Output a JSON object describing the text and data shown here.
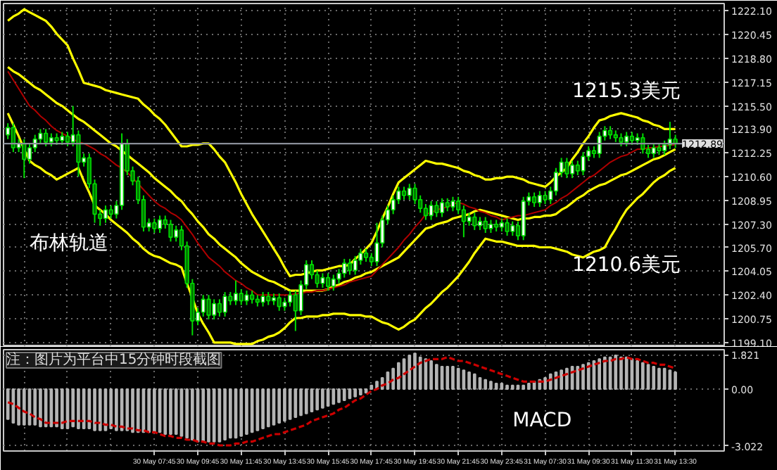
{
  "chart_data": [
    {
      "type": "candlestick",
      "categories": [
        null,
        null,
        null,
        null,
        null,
        null,
        null,
        null,
        null,
        null,
        null,
        null,
        null,
        null,
        null,
        null,
        null,
        null,
        null,
        null,
        null,
        null,
        null,
        null,
        null,
        null,
        null,
        null,
        null,
        null,
        null,
        null,
        null,
        null,
        null,
        null,
        null,
        null,
        null,
        null,
        null,
        null,
        null,
        null,
        null,
        null,
        null,
        null,
        null,
        null,
        null,
        null,
        null,
        null,
        null,
        null,
        null,
        null,
        null,
        null,
        null,
        null,
        null,
        null,
        null,
        null,
        null,
        null,
        null,
        null,
        null,
        null,
        null,
        null,
        null,
        null,
        null,
        null,
        null,
        null,
        null,
        null,
        null,
        null,
        null,
        null,
        null,
        null,
        null,
        null,
        null,
        null,
        null,
        null,
        null,
        null,
        null,
        null,
        null,
        null,
        null,
        null,
        null,
        null,
        null,
        null,
        null,
        null,
        null,
        null,
        null,
        null,
        null,
        null,
        null,
        null,
        null,
        null,
        null,
        null,
        null,
        null,
        null,
        null
      ],
      "ohlc": [
        [
          1213.5,
          1214.3,
          1213.2,
          1214.0
        ],
        [
          1214.0,
          1214.3,
          1212.3,
          1212.6
        ],
        [
          1212.6,
          1213.2,
          1212.3,
          1212.9
        ],
        [
          1212.9,
          1213.2,
          1210.5,
          1211.8
        ],
        [
          1211.8,
          1212.9,
          1211.5,
          1212.6
        ],
        [
          1212.6,
          1213.5,
          1212.3,
          1213.2
        ],
        [
          1213.2,
          1213.9,
          1212.9,
          1213.6
        ],
        [
          1213.6,
          1213.9,
          1212.7,
          1213.0
        ],
        [
          1213.0,
          1213.6,
          1212.7,
          1213.3
        ],
        [
          1213.3,
          1213.6,
          1212.8,
          1213.1
        ],
        [
          1213.1,
          1213.7,
          1212.8,
          1213.4
        ],
        [
          1213.4,
          1213.7,
          1212.7,
          1213.0
        ],
        [
          1213.0,
          1215.5,
          1212.7,
          1213.5
        ],
        [
          1213.5,
          1213.8,
          1210.6,
          1211.6
        ],
        [
          1211.6,
          1212.2,
          1211.3,
          1211.9
        ],
        [
          1211.9,
          1212.2,
          1209.8,
          1210.1
        ],
        [
          1210.1,
          1210.4,
          1207.4,
          1208.0
        ],
        [
          1208.0,
          1208.3,
          1207.2,
          1207.7
        ],
        [
          1207.7,
          1208.6,
          1207.4,
          1208.3
        ],
        [
          1208.3,
          1208.6,
          1207.7,
          1208.0
        ],
        [
          1208.0,
          1208.9,
          1207.7,
          1208.6
        ],
        [
          1208.6,
          1213.6,
          1208.3,
          1212.9
        ],
        [
          1212.9,
          1213.2,
          1210.7,
          1211.0
        ],
        [
          1211.0,
          1211.3,
          1210.0,
          1210.3
        ],
        [
          1210.3,
          1210.6,
          1208.7,
          1209.0
        ],
        [
          1209.0,
          1209.3,
          1206.8,
          1207.1
        ],
        [
          1207.1,
          1207.7,
          1206.8,
          1207.4
        ],
        [
          1207.4,
          1207.7,
          1206.7,
          1207.0
        ],
        [
          1207.0,
          1207.9,
          1206.7,
          1207.6
        ],
        [
          1207.6,
          1207.9,
          1207.0,
          1207.3
        ],
        [
          1207.3,
          1207.6,
          1206.1,
          1206.4
        ],
        [
          1206.4,
          1207.2,
          1206.1,
          1206.9
        ],
        [
          1206.9,
          1207.2,
          1205.5,
          1205.8
        ],
        [
          1205.8,
          1206.1,
          1202.9,
          1203.2
        ],
        [
          1203.2,
          1203.5,
          1199.6,
          1200.6
        ],
        [
          1200.6,
          1201.5,
          1200.3,
          1201.2
        ],
        [
          1201.2,
          1202.4,
          1200.9,
          1202.1
        ],
        [
          1202.1,
          1202.4,
          1200.7,
          1201.0
        ],
        [
          1201.0,
          1202.1,
          1200.7,
          1201.8
        ],
        [
          1201.8,
          1202.1,
          1200.9,
          1201.2
        ],
        [
          1201.2,
          1202.6,
          1200.9,
          1202.3
        ],
        [
          1202.3,
          1202.6,
          1201.7,
          1202.0
        ],
        [
          1202.0,
          1203.4,
          1201.7,
          1202.5
        ],
        [
          1202.5,
          1202.8,
          1201.7,
          1202.0
        ],
        [
          1202.0,
          1202.7,
          1201.7,
          1202.4
        ],
        [
          1202.4,
          1202.7,
          1201.8,
          1202.1
        ],
        [
          1202.1,
          1202.4,
          1201.6,
          1201.9
        ],
        [
          1201.9,
          1202.6,
          1201.6,
          1202.3
        ],
        [
          1202.3,
          1202.6,
          1201.7,
          1202.0
        ],
        [
          1202.0,
          1202.5,
          1201.7,
          1202.2
        ],
        [
          1202.2,
          1202.5,
          1201.3,
          1201.6
        ],
        [
          1201.6,
          1202.2,
          1201.3,
          1201.9
        ],
        [
          1201.9,
          1202.7,
          1201.6,
          1202.4
        ],
        [
          1202.4,
          1202.7,
          1199.9,
          1201.3
        ],
        [
          1201.3,
          1203.4,
          1201.0,
          1203.1
        ],
        [
          1203.1,
          1204.8,
          1202.8,
          1204.5
        ],
        [
          1204.5,
          1204.8,
          1203.5,
          1203.8
        ],
        [
          1203.8,
          1204.1,
          1202.9,
          1203.2
        ],
        [
          1203.2,
          1203.9,
          1202.9,
          1203.6
        ],
        [
          1203.6,
          1203.9,
          1202.7,
          1203.0
        ],
        [
          1203.0,
          1203.8,
          1202.7,
          1203.5
        ],
        [
          1203.5,
          1204.2,
          1203.2,
          1203.9
        ],
        [
          1203.9,
          1204.9,
          1203.6,
          1204.6
        ],
        [
          1204.6,
          1204.9,
          1203.8,
          1204.1
        ],
        [
          1204.1,
          1205.1,
          1203.8,
          1204.8
        ],
        [
          1204.8,
          1205.6,
          1204.5,
          1205.3
        ],
        [
          1205.3,
          1205.6,
          1204.7,
          1205.0
        ],
        [
          1205.0,
          1205.3,
          1204.4,
          1204.7
        ],
        [
          1204.7,
          1207.4,
          1204.4,
          1206.0
        ],
        [
          1206.0,
          1207.9,
          1205.7,
          1207.6
        ],
        [
          1207.6,
          1208.6,
          1207.3,
          1208.3
        ],
        [
          1208.3,
          1209.3,
          1208.0,
          1209.0
        ],
        [
          1209.0,
          1209.9,
          1208.7,
          1209.6
        ],
        [
          1209.6,
          1209.9,
          1209.0,
          1209.3
        ],
        [
          1209.3,
          1210.1,
          1209.0,
          1209.8
        ],
        [
          1209.8,
          1210.1,
          1208.7,
          1209.0
        ],
        [
          1209.0,
          1209.3,
          1208.1,
          1208.4
        ],
        [
          1208.4,
          1208.7,
          1207.6,
          1207.9
        ],
        [
          1207.9,
          1208.9,
          1207.6,
          1208.6
        ],
        [
          1208.6,
          1208.9,
          1207.8,
          1208.1
        ],
        [
          1208.1,
          1209.1,
          1207.8,
          1208.8
        ],
        [
          1208.8,
          1209.1,
          1208.2,
          1208.5
        ],
        [
          1208.5,
          1209.2,
          1208.2,
          1208.9
        ],
        [
          1208.9,
          1209.2,
          1208.0,
          1208.3
        ],
        [
          1208.3,
          1208.6,
          1206.4,
          1207.5
        ],
        [
          1207.5,
          1208.1,
          1207.2,
          1207.8
        ],
        [
          1207.8,
          1208.1,
          1206.9,
          1207.2
        ],
        [
          1207.2,
          1207.8,
          1206.9,
          1207.5
        ],
        [
          1207.5,
          1207.8,
          1206.7,
          1207.0
        ],
        [
          1207.0,
          1207.6,
          1206.7,
          1207.3
        ],
        [
          1207.3,
          1207.6,
          1206.8,
          1207.1
        ],
        [
          1207.1,
          1207.7,
          1206.8,
          1207.4
        ],
        [
          1207.4,
          1207.7,
          1206.5,
          1206.8
        ],
        [
          1206.8,
          1207.5,
          1206.5,
          1207.2
        ],
        [
          1207.2,
          1207.5,
          1206.2,
          1206.5
        ],
        [
          1206.5,
          1209.2,
          1206.2,
          1208.9
        ],
        [
          1208.9,
          1209.5,
          1208.6,
          1209.2
        ],
        [
          1209.2,
          1209.5,
          1208.5,
          1208.8
        ],
        [
          1208.8,
          1209.6,
          1208.5,
          1209.3
        ],
        [
          1209.3,
          1209.6,
          1208.7,
          1209.0
        ],
        [
          1209.0,
          1209.9,
          1208.7,
          1209.6
        ],
        [
          1209.6,
          1211.2,
          1209.3,
          1210.9
        ],
        [
          1210.9,
          1211.9,
          1210.6,
          1211.6
        ],
        [
          1211.6,
          1211.9,
          1210.5,
          1210.8
        ],
        [
          1210.8,
          1211.7,
          1210.5,
          1211.4
        ],
        [
          1211.4,
          1211.7,
          1210.7,
          1211.0
        ],
        [
          1211.0,
          1212.3,
          1210.7,
          1212.0
        ],
        [
          1212.0,
          1212.7,
          1211.7,
          1212.4
        ],
        [
          1212.4,
          1212.7,
          1211.9,
          1212.2
        ],
        [
          1212.2,
          1213.7,
          1211.9,
          1213.4
        ],
        [
          1213.4,
          1214.1,
          1213.1,
          1213.8
        ],
        [
          1213.8,
          1214.1,
          1213.2,
          1213.5
        ],
        [
          1213.5,
          1213.8,
          1213.0,
          1213.3
        ],
        [
          1213.3,
          1213.6,
          1212.7,
          1213.0
        ],
        [
          1213.0,
          1213.7,
          1212.7,
          1213.4
        ],
        [
          1213.4,
          1213.7,
          1212.8,
          1213.1
        ],
        [
          1213.1,
          1213.6,
          1212.8,
          1213.3
        ],
        [
          1213.3,
          1213.6,
          1212.2,
          1212.5
        ],
        [
          1212.5,
          1212.8,
          1211.9,
          1212.2
        ],
        [
          1212.2,
          1212.9,
          1211.9,
          1212.6
        ],
        [
          1212.6,
          1212.9,
          1212.1,
          1212.4
        ],
        [
          1212.4,
          1213.1,
          1212.1,
          1212.8
        ],
        [
          1212.8,
          1214.4,
          1212.5,
          1213.2
        ],
        [
          1213.2,
          1213.5,
          1212.6,
          1212.9
        ]
      ],
      "color": "#00dd00",
      "series": [
        {
          "type": "line",
          "color": "#ffff00",
          "values": [
            1221.4,
            1221.7,
            1221.9,
            1222.2,
            1222.0,
            1221.8,
            1221.6,
            1221.4,
            1221.0,
            1220.5,
            1220.1,
            1219.7,
            1218.8,
            1218.0,
            1217.1,
            1217.0,
            1216.9,
            1216.8,
            1216.6,
            1216.5,
            1216.4,
            1216.3,
            1216.2,
            1216.1,
            1216.0,
            1215.6,
            1215.3,
            1214.9,
            1214.6,
            1214.2,
            1213.7,
            1213.2,
            1212.7,
            1212.7,
            1212.8,
            1212.8,
            1212.9,
            1212.9,
            1212.5,
            1212.0,
            1211.6,
            1210.9,
            1210.2,
            1209.4,
            1208.7,
            1208.0,
            1207.4,
            1206.8,
            1206.2,
            1205.6,
            1205.0,
            1204.3,
            1203.7,
            1203.8,
            1203.8,
            1203.9,
            1204.0,
            1204.1,
            1204.1,
            1204.2,
            1204.3,
            1204.4,
            1204.4,
            1204.5,
            1204.9,
            1205.2,
            1205.6,
            1206.0,
            1206.8,
            1207.7,
            1208.5,
            1209.4,
            1210.2,
            1210.5,
            1210.8,
            1211.1,
            1211.4,
            1211.7,
            1211.6,
            1211.5,
            1211.5,
            1211.4,
            1211.3,
            1211.2,
            1211.0,
            1210.9,
            1210.7,
            1210.6,
            1210.4,
            1210.4,
            1210.5,
            1210.5,
            1210.6,
            1210.6,
            1210.5,
            1210.4,
            1210.2,
            1210.1,
            1210.0,
            1209.9,
            1210.2,
            1210.6,
            1210.9,
            1211.2,
            1211.8,
            1212.3,
            1212.9,
            1213.4,
            1214.0,
            1214.5,
            1214.6,
            1214.8,
            1214.9,
            1215.0,
            1214.9,
            1214.8,
            1214.7,
            1214.5,
            1214.4,
            1214.2,
            1214.1,
            1213.9,
            1213.9,
            1213.9
          ]
        },
        {
          "type": "line",
          "color": "#ffff00",
          "values": [
            1218.2,
            1217.9,
            1217.7,
            1217.4,
            1217.1,
            1216.8,
            1216.6,
            1216.3,
            1216.0,
            1215.7,
            1215.5,
            1215.2,
            1214.9,
            1214.6,
            1214.4,
            1214.1,
            1213.8,
            1213.5,
            1213.2,
            1212.9,
            1212.7,
            1212.4,
            1212.1,
            1211.8,
            1211.5,
            1211.2,
            1210.9,
            1210.5,
            1210.2,
            1209.9,
            1209.6,
            1209.2,
            1208.9,
            1208.4,
            1208.0,
            1207.5,
            1207.1,
            1206.6,
            1206.3,
            1205.9,
            1205.6,
            1205.3,
            1205.0,
            1204.6,
            1204.3,
            1204.0,
            1203.8,
            1203.6,
            1203.4,
            1203.3,
            1203.1,
            1202.9,
            1202.7,
            1202.7,
            1202.7,
            1202.7,
            1202.7,
            1202.7,
            1202.7,
            1202.8,
            1203.0,
            1203.1,
            1203.3,
            1203.4,
            1203.6,
            1203.7,
            1203.9,
            1204.0,
            1204.2,
            1204.4,
            1204.6,
            1204.8,
            1205.0,
            1205.4,
            1205.8,
            1206.2,
            1206.6,
            1207.0,
            1207.1,
            1207.3,
            1207.4,
            1207.5,
            1207.7,
            1207.8,
            1207.9,
            1208.0,
            1208.2,
            1208.3,
            1208.2,
            1208.1,
            1208.0,
            1207.9,
            1207.8,
            1207.7,
            1207.6,
            1207.7,
            1207.7,
            1207.8,
            1207.8,
            1207.9,
            1207.9,
            1208.0,
            1208.3,
            1208.5,
            1208.8,
            1209.1,
            1209.3,
            1209.6,
            1209.8,
            1210.0,
            1210.1,
            1210.3,
            1210.5,
            1210.7,
            1210.8,
            1211.0,
            1211.2,
            1211.4,
            1211.6,
            1211.8,
            1211.9,
            1212.1,
            1212.3,
            1212.5
          ]
        },
        {
          "type": "line",
          "color": "#ffff00",
          "values": [
            1215.0,
            1214.2,
            1213.4,
            1212.5,
            1211.7,
            1211.4,
            1211.2,
            1210.9,
            1210.7,
            1210.4,
            1210.6,
            1210.8,
            1211.0,
            1211.2,
            1210.3,
            1209.5,
            1208.6,
            1208.3,
            1208.0,
            1207.6,
            1207.3,
            1207.0,
            1206.7,
            1206.3,
            1206.0,
            1205.6,
            1205.3,
            1205.1,
            1205.0,
            1204.8,
            1204.6,
            1204.5,
            1204.3,
            1203.2,
            1202.2,
            1201.1,
            1200.4,
            1199.8,
            1199.1,
            1199.1,
            1199.1,
            1199.1,
            1199.0,
            1199.0,
            1199.0,
            1199.0,
            1199.2,
            1199.3,
            1199.5,
            1199.6,
            1199.8,
            1200.1,
            1200.5,
            1200.8,
            1200.8,
            1200.9,
            1200.9,
            1200.9,
            1201.0,
            1201.0,
            1201.1,
            1201.1,
            1201.1,
            1201.0,
            1201.0,
            1201.0,
            1200.9,
            1200.9,
            1200.7,
            1200.5,
            1200.4,
            1200.2,
            1200.0,
            1200.2,
            1200.5,
            1200.7,
            1201.1,
            1201.5,
            1201.8,
            1202.2,
            1202.6,
            1202.9,
            1203.3,
            1203.7,
            1204.2,
            1204.7,
            1205.3,
            1205.8,
            1206.3,
            1206.2,
            1206.1,
            1206.1,
            1206.0,
            1205.9,
            1205.8,
            1205.8,
            1205.8,
            1205.8,
            1205.7,
            1205.7,
            1205.7,
            1205.6,
            1205.5,
            1205.4,
            1205.2,
            1205.1,
            1205.0,
            1205.2,
            1205.4,
            1205.5,
            1205.7,
            1206.4,
            1207.0,
            1207.7,
            1208.3,
            1208.7,
            1209.1,
            1209.4,
            1209.8,
            1210.2,
            1210.5,
            1210.7,
            1211.0,
            1211.2
          ]
        },
        {
          "type": "line",
          "color": "#b00000",
          "values": [
            1217.9,
            1217.3,
            1216.7,
            1216.1,
            1215.5,
            1215.2,
            1214.8,
            1214.5,
            1214.1,
            1213.8,
            1213.6,
            1213.4,
            1213.2,
            1213.0,
            1212.9,
            1212.7,
            1212.5,
            1212.2,
            1212.0,
            1211.7,
            1211.4,
            1211.2,
            1210.9,
            1210.5,
            1210.1,
            1209.7,
            1209.3,
            1208.9,
            1208.6,
            1208.4,
            1208.1,
            1207.9,
            1207.6,
            1207.1,
            1206.6,
            1206.0,
            1205.5,
            1205.0,
            1204.7,
            1204.4,
            1204.0,
            1203.7,
            1203.4,
            1203.2,
            1202.9,
            1202.7,
            1202.4,
            1202.4,
            1202.4,
            1202.4,
            1202.4,
            1202.4,
            1202.4,
            1202.5,
            1202.5,
            1202.6,
            1202.6,
            1202.7,
            1202.7,
            1202.8,
            1202.9,
            1203.0,
            1203.1,
            1203.3,
            1203.4,
            1203.5,
            1203.6,
            1203.7,
            1204.1,
            1204.5,
            1204.9,
            1205.3,
            1205.7,
            1206.2,
            1206.6,
            1207.1,
            1207.5,
            1208.0,
            1208.1,
            1208.3,
            1208.4,
            1208.5,
            1208.7,
            1208.8,
            1208.7,
            1208.5,
            1208.4,
            1208.2,
            1208.1,
            1207.9,
            1207.8,
            1207.6,
            1207.7,
            1207.8,
            1207.9,
            1207.9,
            1208.0,
            1208.1,
            1208.2,
            1208.3,
            1208.6,
            1208.8,
            1209.1,
            1209.3,
            1209.6,
            1209.9,
            1210.2,
            1210.5,
            1210.7,
            1211.0,
            1211.3,
            1211.6,
            1211.8,
            1212.0,
            1212.1,
            1212.3,
            1212.5,
            1212.5,
            1212.6,
            1212.6,
            1212.7,
            1212.7,
            1212.8,
            1212.8
          ]
        }
      ],
      "ylim": [
        1198.8,
        1222.6
      ],
      "yticks": [
        {
          "value": 1222.1,
          "label": "1222.10"
        },
        {
          "value": 1220.45,
          "label": "1220.45"
        },
        {
          "value": 1218.8,
          "label": "1218.80"
        },
        {
          "value": 1217.15,
          "label": "1217.15"
        },
        {
          "value": 1215.5,
          "label": "1215.50"
        },
        {
          "value": 1213.9,
          "label": "1213.90"
        },
        {
          "value": 1212.25,
          "label": "1212.25"
        },
        {
          "value": 1210.6,
          "label": "1210.60"
        },
        {
          "value": 1208.95,
          "label": "1208.95"
        },
        {
          "value": 1207.3,
          "label": "1207.30"
        },
        {
          "value": 1205.7,
          "label": "1205.70"
        },
        {
          "value": 1204.05,
          "label": "1204.05"
        },
        {
          "value": 1202.4,
          "label": "1202.40"
        },
        {
          "value": 1200.75,
          "label": "1200.75"
        },
        {
          "value": 1199.1,
          "label": "1199.10"
        }
      ],
      "ref_lines": [
        {
          "axis": "y",
          "value": 1212.89,
          "label": "1212.89",
          "color": "#8a8f99"
        }
      ],
      "tick_labels": "y",
      "grid": true,
      "annotations": [
        "布林轨道",
        "1215.3美元",
        "1210.6美元"
      ]
    },
    {
      "type": "bar",
      "categories": [
        null,
        null,
        null,
        null,
        null,
        null,
        null,
        null,
        null,
        null,
        null,
        null,
        null,
        null,
        null,
        null,
        null,
        null,
        null,
        null,
        null,
        null,
        null,
        null,
        null,
        null,
        null,
        "30 May 07:45",
        null,
        null,
        null,
        null,
        null,
        null,
        null,
        "30 May 09:45",
        null,
        null,
        null,
        null,
        null,
        null,
        null,
        "30 May 11:45",
        null,
        null,
        null,
        null,
        null,
        null,
        null,
        "30 May 13:45",
        null,
        null,
        null,
        null,
        null,
        null,
        null,
        "30 May 15:45",
        null,
        null,
        null,
        null,
        null,
        null,
        null,
        "30 May 17:45",
        null,
        null,
        null,
        null,
        null,
        null,
        null,
        "30 May 19:45",
        null,
        null,
        null,
        null,
        null,
        null,
        null,
        "30 May 21:45",
        null,
        null,
        null,
        null,
        null,
        null,
        null,
        "30 May 23:45",
        null,
        null,
        null,
        null,
        null,
        null,
        null,
        "31 May 07:30",
        null,
        null,
        null,
        null,
        null,
        null,
        null,
        "31 May 09:30",
        null,
        null,
        null,
        null,
        null,
        null,
        null,
        "31 May 11:30",
        null,
        null,
        null,
        null,
        null,
        null,
        null,
        "31 May 13:30"
      ],
      "series": [
        {
          "type": "bar",
          "color": "#b4b4b4",
          "values": [
            -1.6,
            -1.8,
            -1.9,
            -1.9,
            -1.9,
            -1.9,
            -2.0,
            -2.0,
            -2.0,
            -2.0,
            -2.1,
            -2.1,
            -2.0,
            -2.1,
            -2.1,
            -2.1,
            -2.2,
            -2.2,
            -2.2,
            -2.1,
            -2.2,
            -2.2,
            -2.2,
            -2.3,
            -2.3,
            -2.3,
            -2.3,
            -2.3,
            -2.3,
            -2.4,
            -2.4,
            -2.4,
            -2.5,
            -2.6,
            -2.7,
            -2.8,
            -2.8,
            -2.8,
            -2.8,
            -2.8,
            -2.7,
            -2.6,
            -2.6,
            -2.5,
            -2.4,
            -2.3,
            -2.2,
            -2.1,
            -2.0,
            -1.9,
            -1.8,
            -1.7,
            -1.6,
            -1.5,
            -1.4,
            -1.3,
            -1.2,
            -1.1,
            -1.0,
            -0.9,
            -0.8,
            -0.7,
            -0.6,
            -0.5,
            -0.4,
            -0.3,
            -0.2,
            0.2,
            0.4,
            0.6,
            0.9,
            1.1,
            1.4,
            1.6,
            1.8,
            1.9,
            1.7,
            1.6,
            1.5,
            1.3,
            1.2,
            1.2,
            1.2,
            1.1,
            1.0,
            0.9,
            0.8,
            0.6,
            0.5,
            0.4,
            0.3,
            0.3,
            0.2,
            0.2,
            0.2,
            0.2,
            0.3,
            0.4,
            0.5,
            0.6,
            0.8,
            0.9,
            1.0,
            1.1,
            1.2,
            1.2,
            1.3,
            1.4,
            1.5,
            1.6,
            1.7,
            1.7,
            1.8,
            1.7,
            1.7,
            1.6,
            1.5,
            1.4,
            1.3,
            1.2,
            1.1,
            1.1,
            1.0,
            0.9
          ]
        },
        {
          "type": "line",
          "color": "#cc0000",
          "line_style": "dashed",
          "values": [
            -0.7,
            -0.8,
            -1.0,
            -1.2,
            -1.3,
            -1.5,
            -1.6,
            -1.8,
            -1.8,
            -1.8,
            -1.8,
            -1.7,
            -1.7,
            -1.7,
            -1.7,
            -1.7,
            -1.8,
            -1.8,
            -1.9,
            -1.9,
            -2.0,
            -2.0,
            -2.1,
            -2.1,
            -2.2,
            -2.2,
            -2.3,
            -2.3,
            -2.4,
            -2.5,
            -2.5,
            -2.6,
            -2.6,
            -2.7,
            -2.7,
            -2.8,
            -2.8,
            -2.9,
            -2.9,
            -3.0,
            -3.0,
            -3.0,
            -2.9,
            -2.9,
            -2.8,
            -2.8,
            -2.7,
            -2.6,
            -2.5,
            -2.4,
            -2.4,
            -2.3,
            -2.2,
            -2.1,
            -2.0,
            -1.9,
            -1.7,
            -1.6,
            -1.5,
            -1.4,
            -1.3,
            -1.1,
            -1.0,
            -0.8,
            -0.6,
            -0.5,
            -0.3,
            -0.1,
            0.0,
            0.2,
            0.3,
            0.5,
            0.6,
            0.8,
            1.0,
            1.2,
            1.4,
            1.5,
            1.6,
            1.6,
            1.6,
            1.7,
            1.6,
            1.5,
            1.5,
            1.4,
            1.3,
            1.2,
            1.1,
            1.0,
            0.9,
            0.8,
            0.7,
            0.6,
            0.5,
            0.4,
            0.4,
            0.4,
            0.4,
            0.4,
            0.5,
            0.6,
            0.7,
            0.8,
            0.9,
            1.0,
            1.1,
            1.2,
            1.3,
            1.4,
            1.5,
            1.5,
            1.6,
            1.6,
            1.7,
            1.6,
            1.6,
            1.5,
            1.4,
            1.4,
            1.3,
            1.3,
            1.2,
            1.1
          ]
        }
      ],
      "ylim": [
        -3.3,
        2.1
      ],
      "yticks": [
        {
          "value": 1.821,
          "label": "1.821"
        },
        {
          "value": 0,
          "label": "0.00"
        },
        {
          "value": -3.022,
          "label": "-3.022"
        }
      ],
      "grid": true,
      "annotations": [
        "MACD",
        "注：图片为平台中15分钟时段截图"
      ]
    }
  ]
}
